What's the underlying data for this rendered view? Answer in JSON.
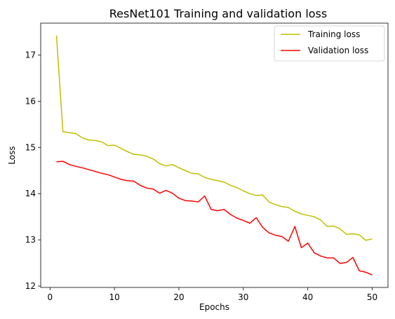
{
  "chart_data": {
    "type": "line",
    "title": "ResNet101 Training and validation loss",
    "xlabel": "Epochs",
    "ylabel": "Loss",
    "xlim": [
      -1.45,
      52.45
    ],
    "ylim": [
      11.97,
      17.69
    ],
    "xticks": [
      0,
      10,
      20,
      30,
      40,
      50
    ],
    "yticks": [
      12,
      13,
      14,
      15,
      16,
      17
    ],
    "legend_position": "upper right",
    "grid": false,
    "x": [
      1,
      2,
      3,
      4,
      5,
      6,
      7,
      8,
      9,
      10,
      11,
      12,
      13,
      14,
      15,
      16,
      17,
      18,
      19,
      20,
      21,
      22,
      23,
      24,
      25,
      26,
      27,
      28,
      29,
      30,
      31,
      32,
      33,
      34,
      35,
      36,
      37,
      38,
      39,
      40,
      41,
      42,
      43,
      44,
      45,
      46,
      47,
      48,
      49,
      50
    ],
    "series": [
      {
        "name": "Training loss",
        "color": "#bfbf00",
        "values": [
          17.42,
          15.34,
          15.32,
          15.3,
          15.21,
          15.16,
          15.15,
          15.12,
          15.04,
          15.05,
          14.98,
          14.91,
          14.85,
          14.84,
          14.81,
          14.75,
          14.65,
          14.6,
          14.63,
          14.56,
          14.5,
          14.44,
          14.43,
          14.35,
          14.31,
          14.28,
          14.25,
          14.18,
          14.13,
          14.06,
          14.0,
          13.96,
          13.97,
          13.82,
          13.76,
          13.72,
          13.7,
          13.62,
          13.56,
          13.53,
          13.5,
          13.43,
          13.29,
          13.3,
          13.24,
          13.12,
          13.13,
          13.11,
          12.99,
          13.02
        ]
      },
      {
        "name": "Validation loss",
        "color": "#ff0000",
        "values": [
          14.69,
          14.7,
          14.63,
          14.59,
          14.56,
          14.52,
          14.48,
          14.44,
          14.41,
          14.36,
          14.31,
          14.28,
          14.27,
          14.18,
          14.12,
          14.1,
          14.01,
          14.07,
          14.01,
          13.9,
          13.85,
          13.84,
          13.82,
          13.95,
          13.66,
          13.63,
          13.66,
          13.55,
          13.47,
          13.42,
          13.36,
          13.48,
          13.27,
          13.15,
          13.1,
          13.07,
          12.97,
          13.29,
          12.83,
          12.93,
          12.72,
          12.65,
          12.61,
          12.61,
          12.49,
          12.51,
          12.62,
          12.33,
          12.3,
          12.24
        ]
      }
    ]
  }
}
